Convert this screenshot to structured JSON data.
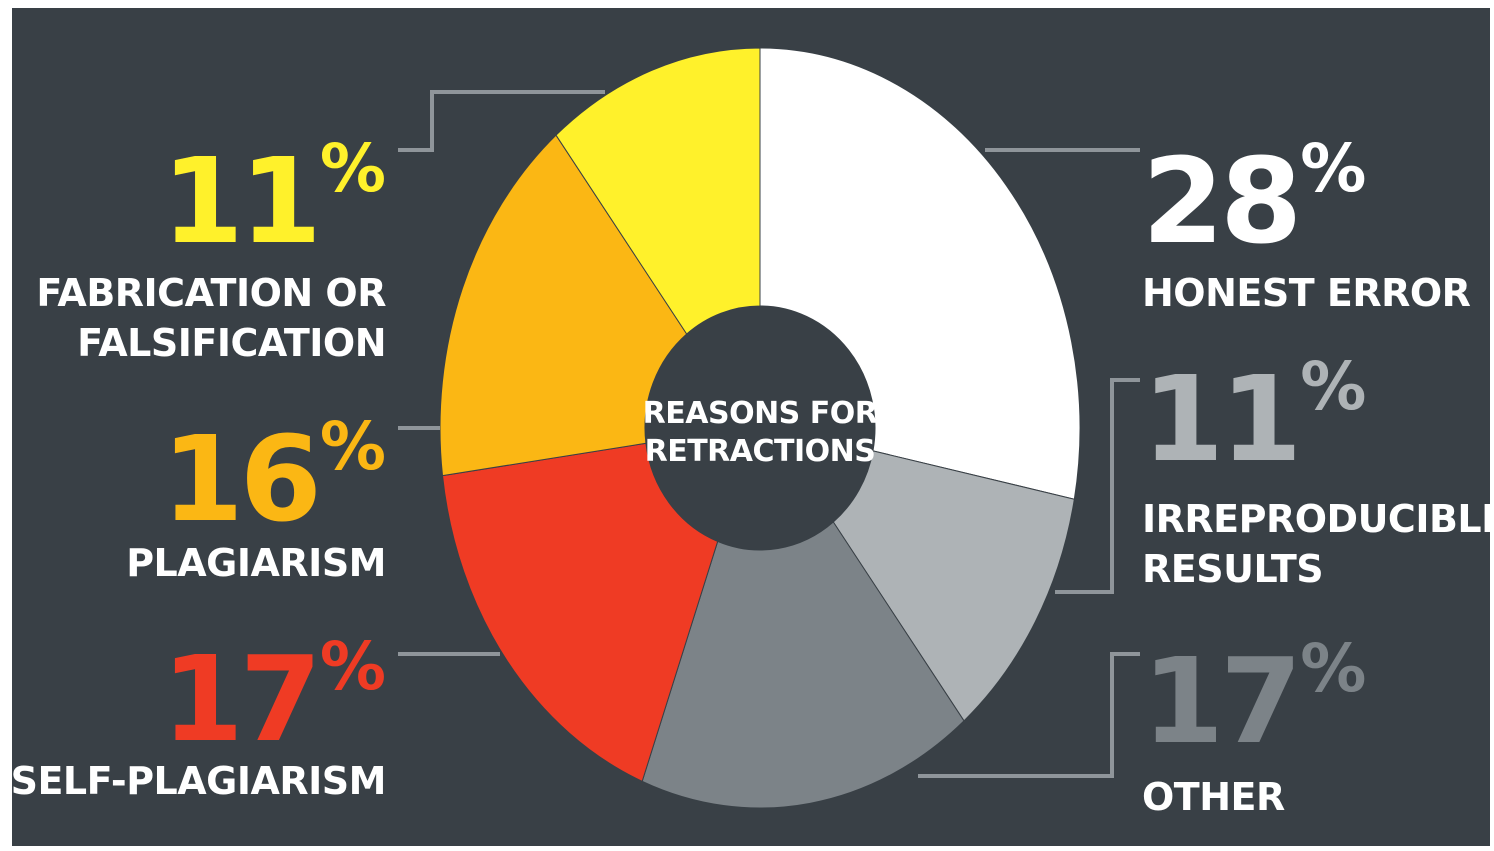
{
  "chart_data": {
    "type": "pie",
    "title": "REASONS FOR RETRACTIONS",
    "slices": [
      {
        "key": "honest",
        "label": "HONEST ERROR",
        "value": 28,
        "percent_label": "28",
        "color": "#ffffff"
      },
      {
        "key": "irreproducible",
        "label": "IRREPRODUCIBLE RESULTS",
        "value": 11,
        "percent_label": "11",
        "color": "#aeb3b6"
      },
      {
        "key": "other",
        "label": "OTHER",
        "value": 17,
        "percent_label": "17",
        "color": "#7c8388"
      },
      {
        "key": "selfplag",
        "label": "SELF-PLAGIARISM",
        "value": 17,
        "percent_label": "17",
        "color": "#ef3b24"
      },
      {
        "key": "plag",
        "label": "PLAGIARISM",
        "value": 16,
        "percent_label": "16",
        "color": "#fbb714"
      },
      {
        "key": "fab",
        "label": "FABRICATION OR FALSIFICATION",
        "value": 11,
        "percent_label": "11",
        "color": "#fff12b"
      }
    ]
  },
  "annotations": {
    "percent_symbol": "%",
    "honest": {
      "line1": "HONEST ERROR"
    },
    "irreproducible": {
      "line1": "IRREPRODUCIBLE",
      "line2": "RESULTS",
      "text_color": "#aeb3b6"
    },
    "other": {
      "line1": "OTHER",
      "text_color": "#7c8388"
    },
    "selfplag": {
      "line1": "SELF-PLAGIARISM",
      "text_color": "#ef3b24"
    },
    "plag": {
      "line1": "PLAGIARISM",
      "text_color": "#fbb714"
    },
    "fab": {
      "line1": "FABRICATION OR",
      "line2": "FALSIFICATION",
      "text_color": "#fff12b"
    },
    "center": {
      "line1": "REASONS FOR",
      "line2": "RETRACTIONS"
    }
  },
  "colors": {
    "background": "#394046",
    "leader_line": "#8f959a"
  }
}
